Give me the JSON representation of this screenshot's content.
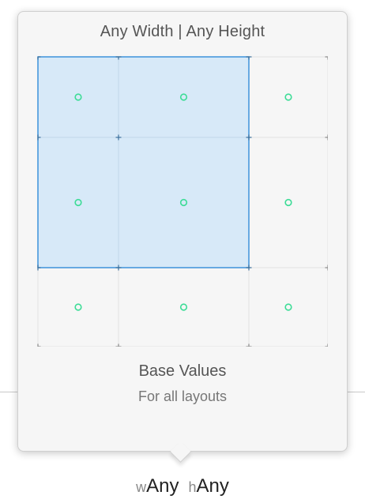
{
  "popover": {
    "title": "Any Width | Any Height",
    "base_label": "Base Values",
    "sub_label": "For all layouts"
  },
  "grid": {
    "columns": 3,
    "rows": 3,
    "selected_columns": 2,
    "selected_rows": 2,
    "colors": {
      "selection_fill": "#d7e9f8",
      "selection_border": "#3d92da",
      "grid_line": "#e2e2e2",
      "tick": "#8a8a8a",
      "dot": "#3ddc97"
    }
  },
  "size_class": {
    "width_prefix": "w",
    "width_value": "Any",
    "height_prefix": "h",
    "height_value": "Any"
  }
}
